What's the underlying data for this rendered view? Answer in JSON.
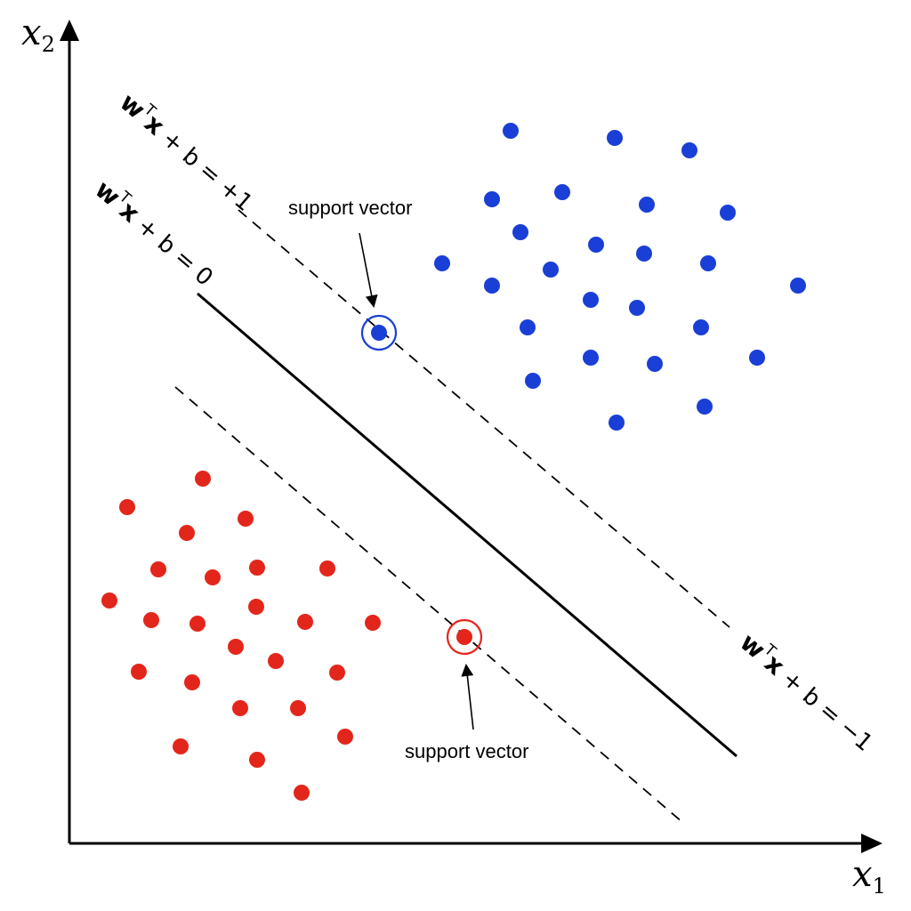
{
  "axes": {
    "x_var": "x",
    "x_sub": "1",
    "y_var": "x",
    "y_sub": "2"
  },
  "equations": {
    "positive_margin": {
      "w": "w",
      "sup": "T",
      "x": "x",
      "rest": " + b = +1"
    },
    "decision_boundary": {
      "w": "w",
      "sup": "T",
      "x": "x",
      "rest": " + b = 0"
    },
    "negative_margin": {
      "w": "w",
      "sup": "T",
      "x": "x",
      "rest": " + b = −1"
    }
  },
  "annotations": {
    "top_label": "support vector",
    "bottom_label": "support vector"
  },
  "classes": {
    "positive": {
      "color": "#1a3fd6",
      "count": 30
    },
    "negative": {
      "color": "#e3261b",
      "count": 29
    }
  },
  "support_vectors": {
    "positive_ring_color": "#1a3fd6",
    "negative_ring_color": "#e3261b"
  }
}
